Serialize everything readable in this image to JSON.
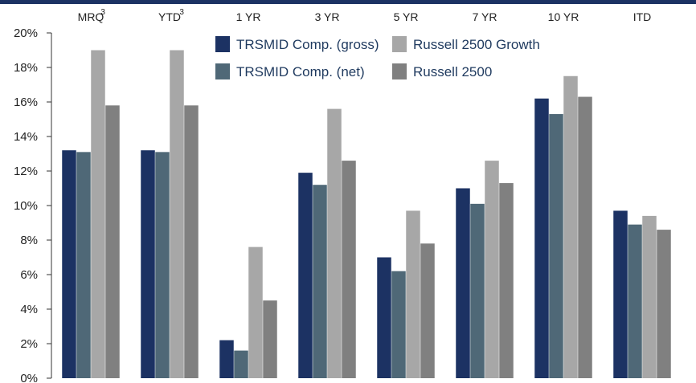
{
  "chart_data": {
    "type": "bar",
    "categories": [
      "MRQ",
      "YTD",
      "1 YR",
      "3 YR",
      "5 YR",
      "7 YR",
      "10 YR",
      "ITD"
    ],
    "category_superscripts": [
      "3",
      "3",
      "",
      "",
      "",
      "",
      "",
      ""
    ],
    "series": [
      {
        "name": "TRSMID Comp. (gross)",
        "color": "#1c3263",
        "values": [
          13.2,
          13.2,
          2.2,
          11.9,
          7.0,
          11.0,
          16.2,
          9.7
        ]
      },
      {
        "name": "TRSMID Comp. (net)",
        "color": "#4f6877",
        "values": [
          13.1,
          13.1,
          1.6,
          11.2,
          6.2,
          10.1,
          15.3,
          8.9
        ]
      },
      {
        "name": "Russell 2500 Growth",
        "color": "#a7a7a7",
        "values": [
          19.0,
          19.0,
          7.6,
          15.6,
          9.7,
          12.6,
          17.5,
          9.4
        ]
      },
      {
        "name": "Russell 2500",
        "color": "#808080",
        "values": [
          15.8,
          15.8,
          4.5,
          12.6,
          7.8,
          11.3,
          16.3,
          8.6
        ]
      }
    ],
    "ylim": [
      0,
      20
    ],
    "yticks": [
      "0%",
      "2%",
      "4%",
      "6%",
      "8%",
      "10%",
      "12%",
      "14%",
      "16%",
      "18%",
      "20%"
    ],
    "xlabel": "",
    "ylabel": "",
    "title": "",
    "grid": false,
    "legend_position": "top-center"
  },
  "colors": {
    "top_rule": "#1c3263",
    "axis": "#333333"
  }
}
